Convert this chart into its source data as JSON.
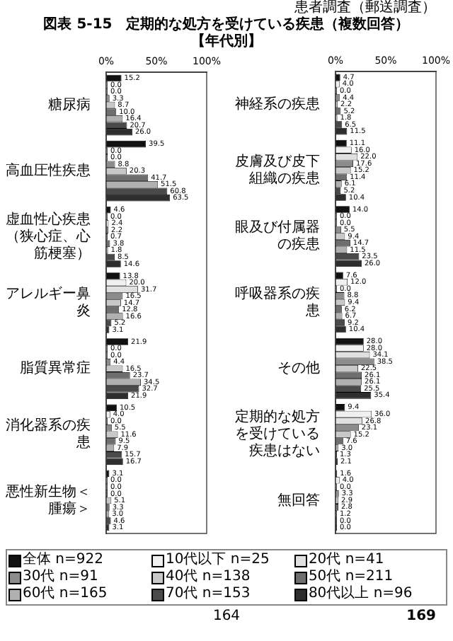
{
  "chart_data": [
    {
      "type": "bar",
      "orientation": "horizontal",
      "title": "図表 5-15　定期的な処方を受けている疾患（複数回答）",
      "subtitle": "【年代別】",
      "annotations": [
        "患者調査（郵送調査）",
        "164",
        "169"
      ],
      "categories": [
        "糖尿病",
        "高血圧性疾患",
        "虚血性心疾患（狭心症、心筋梗塞）",
        "アレルギー鼻炎",
        "脂質異常症",
        "消化器系の疾患",
        "悪性新生物＜腫瘍＞"
      ],
      "xlim": [
        0,
        100
      ],
      "xticks": [
        {
          "value": 0,
          "label": "0%"
        },
        {
          "value": 50,
          "label": "50%"
        },
        {
          "value": 100,
          "label": "100%"
        }
      ],
      "legend": "bottom",
      "series": [
        {
          "name": "全体 n=922",
          "color": "#111111",
          "values": [
            15.2,
            39.5,
            4.6,
            13.8,
            21.9,
            10.5,
            3.1
          ],
          "value_labels": [
            "15.2",
            "39.5",
            "4.6",
            "13.8",
            "21.9",
            "10.5",
            "3.1"
          ]
        },
        {
          "name": "10代以下 n=25",
          "color": "#f0f0f0",
          "values": [
            0.0,
            0.0,
            0.0,
            20.0,
            0.0,
            4.0,
            0.0
          ],
          "value_labels": [
            "0.0",
            "0.0",
            "0.0",
            "20.0",
            "0.0",
            "4.0",
            "0.0"
          ]
        },
        {
          "name": "20代 n=41",
          "color": "#e0e0e0",
          "values": [
            0.0,
            0.0,
            2.4,
            31.7,
            0.0,
            0.0,
            0.0
          ],
          "value_labels": [
            "0.0",
            "0.0",
            "2.4",
            "31.7",
            "0.0",
            "0.0",
            "0.0"
          ]
        },
        {
          "name": "30代 n=91",
          "color": "#8c8c8c",
          "values": [
            3.3,
            8.8,
            2.2,
            16.5,
            4.4,
            5.5,
            0.0
          ],
          "value_labels": [
            "3.3",
            "8.8",
            "2.2",
            "16.5",
            "4.4",
            "5.5",
            "0.0"
          ]
        },
        {
          "name": "40代 n=138",
          "color": "#c8c8c8",
          "values": [
            8.7,
            20.3,
            0.7,
            14.7,
            16.5,
            11.6,
            5.1
          ],
          "value_labels": [
            "8.7",
            "20.3",
            "0.7",
            "14.7",
            "16.5",
            "11.6",
            "5.1"
          ]
        },
        {
          "name": "50代 n=211",
          "color": "#6e6e6e",
          "values": [
            10.0,
            41.7,
            3.8,
            12.8,
            23.7,
            9.5,
            3.3
          ],
          "value_labels": [
            "10.0",
            "41.7",
            "3.8",
            "12.8",
            "23.7",
            "9.5",
            "3.3"
          ]
        },
        {
          "name": "60代 n=165",
          "color": "#b0b0b0",
          "values": [
            16.4,
            51.5,
            1.8,
            16.6,
            34.5,
            7.9,
            3.0
          ],
          "value_labels": [
            "16.4",
            "51.5",
            "1.8",
            "16.6",
            "34.5",
            "7.9",
            "3.0"
          ]
        },
        {
          "name": "70代 n=153",
          "color": "#4a4a4a",
          "values": [
            20.7,
            60.8,
            8.5,
            5.2,
            32.7,
            15.7,
            4.6
          ],
          "value_labels": [
            "20.7",
            "60.8",
            "8.5",
            "5.2",
            "32.7",
            "15.7",
            "4.6"
          ]
        },
        {
          "name": "80代以上 n=96",
          "color": "#2e2e2e",
          "values": [
            26.0,
            63.5,
            14.6,
            3.1,
            21.9,
            16.7,
            3.1
          ],
          "value_labels": [
            "26.0",
            "63.5",
            "14.6",
            "3.1",
            "21.9",
            "16.7",
            "3.1"
          ]
        }
      ]
    },
    {
      "type": "bar",
      "orientation": "horizontal",
      "categories": [
        "神経系の疾患",
        "皮膚及び皮下組織の疾患",
        "眼及び付属器の疾患",
        "呼吸器系の疾患",
        "その他",
        "定期的な処方を受けている疾患はない",
        "無回答"
      ],
      "xlim": [
        0,
        100
      ],
      "xticks": [
        {
          "value": 0,
          "label": "0%"
        },
        {
          "value": 50,
          "label": "50%"
        },
        {
          "value": 100,
          "label": "100%"
        }
      ],
      "series": [
        {
          "color": "#111111",
          "values": [
            4.7,
            11.1,
            14.0,
            7.6,
            28.0,
            9.4,
            1.6
          ],
          "value_labels": [
            "4.7",
            "11.1",
            "14.0",
            "7.6",
            "28.0",
            "9.4",
            "1.6"
          ]
        },
        {
          "color": "#f0f0f0",
          "values": [
            4.0,
            16.0,
            0.0,
            12.0,
            28.0,
            36.0,
            4.0
          ],
          "value_labels": [
            "4.0",
            "16.0",
            "0.0",
            "12.0",
            "28.0",
            "36.0",
            "4.0"
          ]
        },
        {
          "color": "#e0e0e0",
          "values": [
            0.0,
            22.0,
            0.0,
            0.0,
            34.1,
            26.8,
            0.0
          ],
          "value_labels": [
            "0.0",
            "22.0",
            "0.0",
            "0.0",
            "34.1",
            "26.8",
            "0.0"
          ]
        },
        {
          "color": "#8c8c8c",
          "values": [
            4.4,
            17.6,
            5.5,
            8.8,
            38.5,
            23.1,
            3.3
          ],
          "value_labels": [
            "4.4",
            "17.6",
            "5.5",
            "8.8",
            "38.5",
            "23.1",
            "3.3"
          ]
        },
        {
          "color": "#c8c8c8",
          "values": [
            2.2,
            15.2,
            9.4,
            9.4,
            22.5,
            15.2,
            2.9
          ],
          "value_labels": [
            "2.2",
            "15.2",
            "9.4",
            "9.4",
            "22.5",
            "15.2",
            "2.9"
          ]
        },
        {
          "color": "#6e6e6e",
          "values": [
            5.2,
            11.4,
            14.7,
            6.2,
            26.1,
            7.6,
            2.8
          ],
          "value_labels": [
            "5.2",
            "11.4",
            "14.7",
            "6.2",
            "26.1",
            "7.6",
            "2.8"
          ]
        },
        {
          "color": "#b0b0b0",
          "values": [
            1.8,
            6.1,
            11.5,
            6.7,
            26.1,
            3.0,
            1.2
          ],
          "value_labels": [
            "1.8",
            "6.1",
            "11.5",
            "6.7",
            "26.1",
            "3.0",
            "1.2"
          ]
        },
        {
          "color": "#4a4a4a",
          "values": [
            6.5,
            5.2,
            23.5,
            9.2,
            25.5,
            1.3,
            0.0
          ],
          "value_labels": [
            "6.5",
            "5.2",
            "23.5",
            "9.2",
            "25.5",
            "1.3",
            "0.0"
          ]
        },
        {
          "color": "#2e2e2e",
          "values": [
            11.5,
            10.4,
            26.0,
            10.4,
            35.4,
            2.1,
            0.0
          ],
          "value_labels": [
            "11.5",
            "10.4",
            "26.0",
            "10.4",
            "35.4",
            "2.1",
            "0.0"
          ]
        }
      ]
    }
  ]
}
